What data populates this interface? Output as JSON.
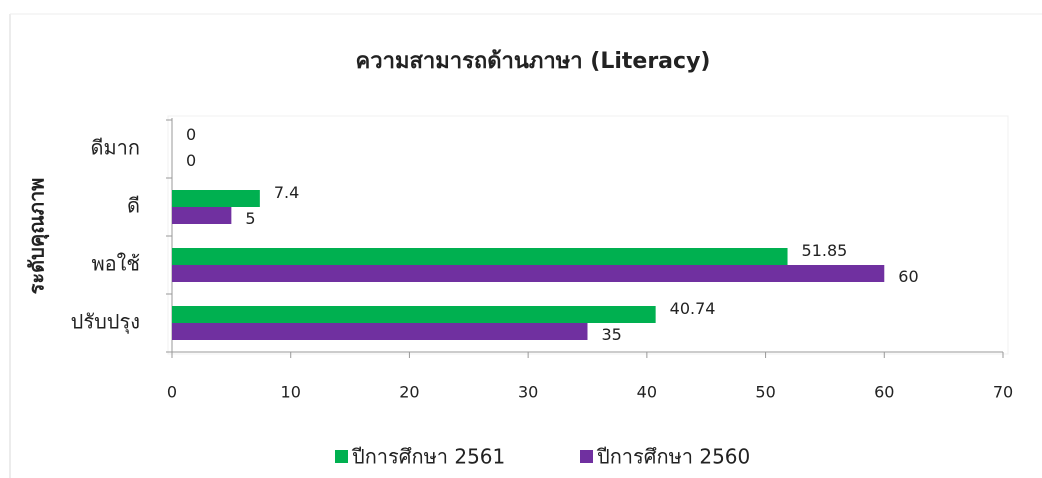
{
  "chart_data": {
    "type": "hbar",
    "title": "ความสามารถด้านภาษา (Literacy)",
    "y_label": "ระดับคุณภาพ",
    "categories": [
      "ดีมาก",
      "ดี",
      "พอใช้",
      "ปรับปรุง"
    ],
    "series": [
      {
        "name": "ปีการศึกษา 2561",
        "color": "#00b050",
        "values": [
          0,
          7.4,
          51.85,
          40.74
        ]
      },
      {
        "name": "ปีการศึกษา 2560",
        "color": "#7030a0",
        "values": [
          0,
          5,
          60,
          35
        ]
      }
    ],
    "xlim": [
      0,
      70
    ],
    "xticks": [
      0,
      10,
      20,
      30,
      40,
      50,
      60,
      70
    ],
    "grid": false,
    "legend": "bottom"
  }
}
